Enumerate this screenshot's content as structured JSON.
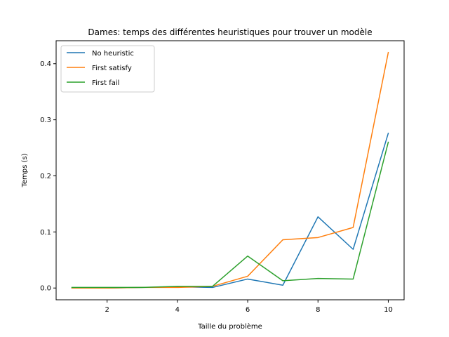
{
  "chart_data": {
    "type": "line",
    "title": "Dames: temps des différentes heuristiques pour trouver un modèle",
    "xlabel": "Taille du problème",
    "ylabel": "Temps (s)",
    "xlim": [
      0.55,
      10.45
    ],
    "ylim": [
      -0.021,
      0.441
    ],
    "xticks": [
      2,
      4,
      6,
      8,
      10
    ],
    "yticks": [
      0.0,
      0.1,
      0.2,
      0.3,
      0.4
    ],
    "ytick_labels": [
      "0.0",
      "0.1",
      "0.2",
      "0.3",
      "0.4"
    ],
    "x": [
      1,
      2,
      3,
      4,
      5,
      6,
      7,
      8,
      9,
      10
    ],
    "legend_position": "top-left",
    "grid": false,
    "series": [
      {
        "name": "No heuristic",
        "color": "#1f77b4",
        "values": [
          0.0,
          0.0,
          0.001,
          0.002,
          0.001,
          0.016,
          0.005,
          0.127,
          0.069,
          0.276
        ]
      },
      {
        "name": "First satisfy",
        "color": "#ff7f0e",
        "values": [
          0.0,
          0.0,
          0.001,
          0.001,
          0.003,
          0.021,
          0.086,
          0.09,
          0.108,
          0.42
        ]
      },
      {
        "name": "First fail",
        "color": "#2ca02c",
        "values": [
          0.001,
          0.001,
          0.001,
          0.003,
          0.003,
          0.057,
          0.013,
          0.017,
          0.016,
          0.26
        ]
      }
    ]
  }
}
